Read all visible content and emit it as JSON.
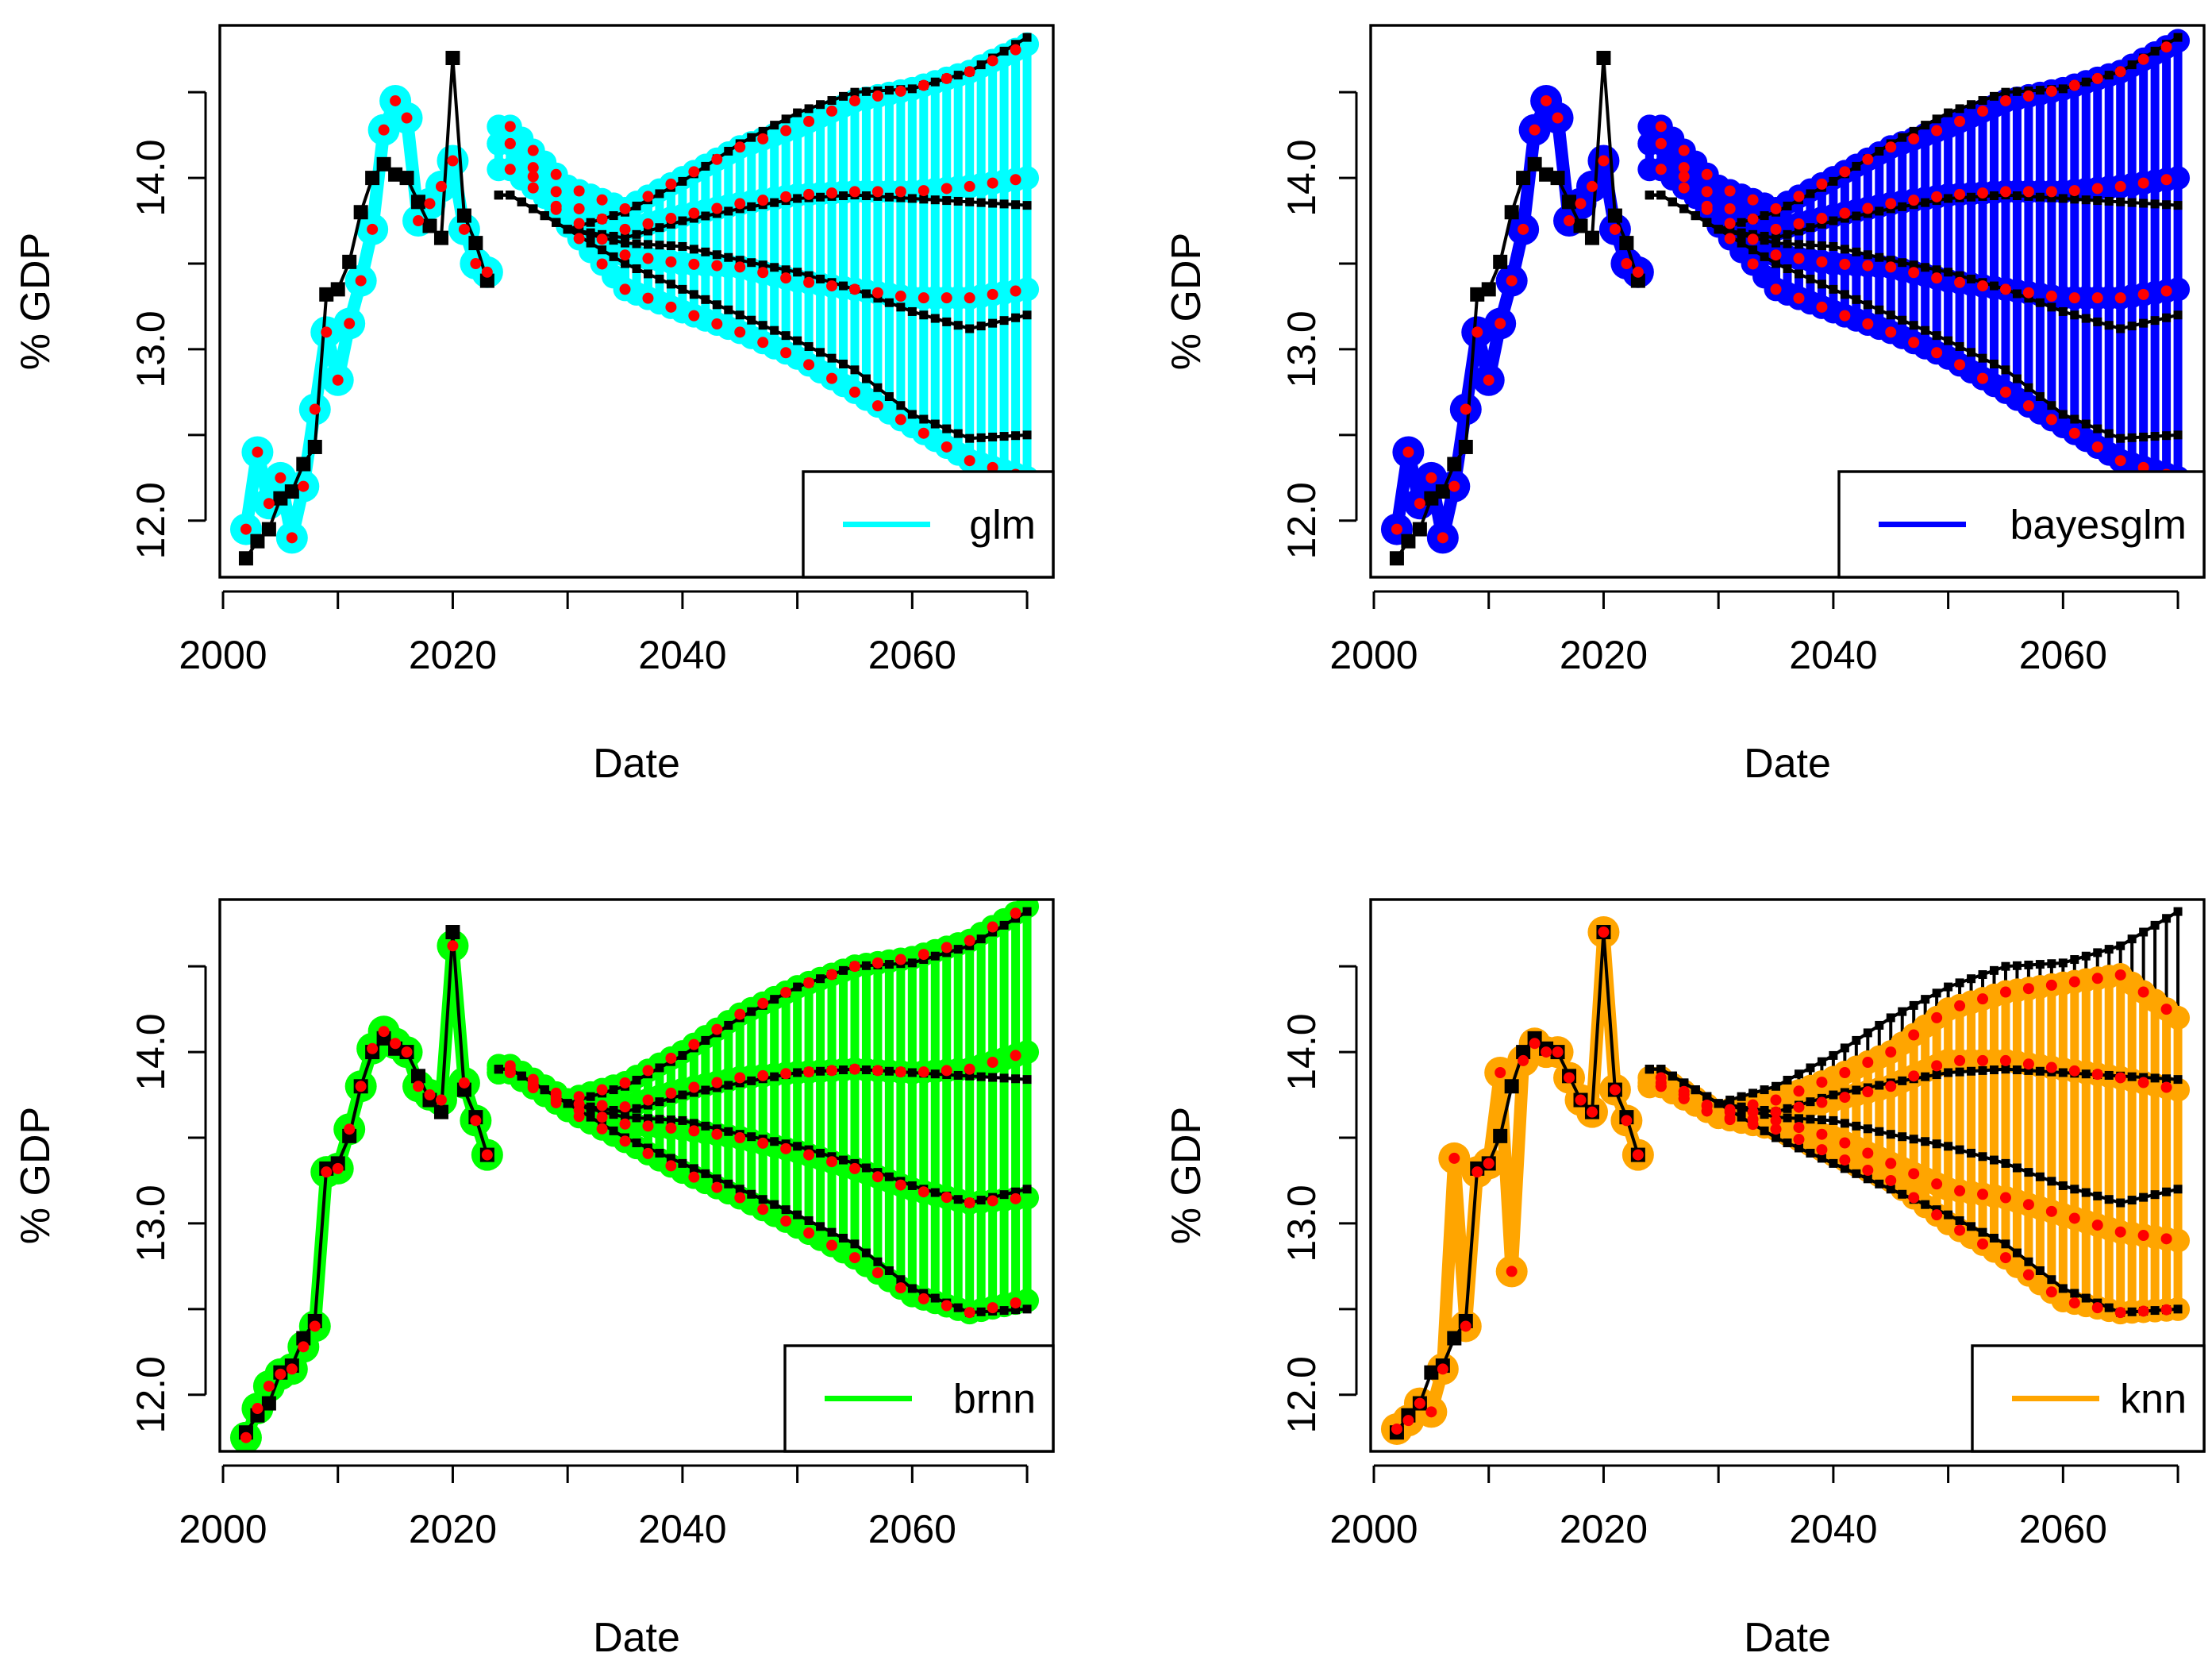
{
  "chart_data": [
    {
      "type": "line",
      "panel": "top-left",
      "model": "glm",
      "color": "#00ffff",
      "xlabel": "Date",
      "ylabel": "% GDP",
      "xlim": [
        2000,
        2072
      ],
      "ylim": [
        11.67,
        14.89
      ],
      "xticks": [
        2000,
        2020,
        2040,
        2060
      ],
      "yticks": [
        12.0,
        13.0,
        14.0
      ],
      "yticks_minor": [
        12.5,
        13.5,
        14.5
      ],
      "legend": {
        "label": "glm",
        "position": "bottom-right"
      },
      "observed": {
        "x": [
          2002,
          2003,
          2004,
          2005,
          2006,
          2007,
          2008,
          2009,
          2010,
          2011,
          2012,
          2013,
          2014,
          2015,
          2016,
          2017,
          2018,
          2019,
          2020,
          2021,
          2022,
          2023
        ],
        "y": [
          11.78,
          11.88,
          11.95,
          12.13,
          12.17,
          12.33,
          12.43,
          13.32,
          13.35,
          13.51,
          13.8,
          14.0,
          14.08,
          14.02,
          14.0,
          13.86,
          13.72,
          13.65,
          14.7,
          13.78,
          13.62,
          13.4
        ]
      },
      "fitted_history": {
        "x": [
          2002,
          2003,
          2004,
          2005,
          2006,
          2007,
          2008,
          2009,
          2010,
          2011,
          2012,
          2013,
          2014,
          2015,
          2016,
          2017,
          2018,
          2019,
          2020,
          2021,
          2022,
          2023
        ],
        "y": [
          11.95,
          12.4,
          12.1,
          12.25,
          11.9,
          12.2,
          12.65,
          13.1,
          12.82,
          13.15,
          13.4,
          13.7,
          14.28,
          14.45,
          14.35,
          13.75,
          13.85,
          13.95,
          14.1,
          13.7,
          13.5,
          13.45
        ]
      },
      "projection_x": [
        2025,
        2030,
        2035,
        2040,
        2045,
        2050,
        2055,
        2060,
        2065,
        2070
      ],
      "reference_paths": [
        {
          "name": "upper",
          "y": [
            13.9,
            13.7,
            13.8,
            13.98,
            14.2,
            14.38,
            14.5,
            14.52,
            14.62,
            14.82
          ]
        },
        {
          "name": "upper-middle",
          "y": [
            13.9,
            13.7,
            13.65,
            13.75,
            13.82,
            13.88,
            13.9,
            13.88,
            13.86,
            13.84
          ]
        },
        {
          "name": "lower-middle",
          "y": [
            13.9,
            13.7,
            13.62,
            13.6,
            13.52,
            13.45,
            13.35,
            13.22,
            13.12,
            13.2
          ]
        },
        {
          "name": "lower",
          "y": [
            13.9,
            13.7,
            13.5,
            13.35,
            13.2,
            13.05,
            12.88,
            12.62,
            12.48,
            12.5
          ]
        }
      ],
      "model_paths": [
        {
          "name": "upper",
          "y": [
            14.3,
            13.95,
            13.82,
            14.0,
            14.18,
            14.3,
            14.45,
            14.52,
            14.62,
            14.78
          ]
        },
        {
          "name": "upper-middle",
          "y": [
            14.2,
            13.85,
            13.7,
            13.78,
            13.85,
            13.9,
            13.92,
            13.92,
            13.95,
            14.0
          ]
        },
        {
          "name": "lower-middle",
          "y": [
            14.05,
            13.78,
            13.55,
            13.5,
            13.48,
            13.4,
            13.35,
            13.3,
            13.3,
            13.35
          ]
        },
        {
          "name": "lower",
          "y": [
            14.2,
            13.72,
            13.35,
            13.22,
            13.1,
            12.95,
            12.75,
            12.55,
            12.35,
            12.25
          ]
        }
      ]
    },
    {
      "type": "line",
      "panel": "top-right",
      "model": "bayesglm",
      "color": "#0000ff",
      "xlabel": "Date",
      "ylabel": "% GDP",
      "xlim": [
        2000,
        2072
      ],
      "ylim": [
        11.67,
        14.89
      ],
      "xticks": [
        2000,
        2020,
        2040,
        2060
      ],
      "yticks": [
        12.0,
        13.0,
        14.0
      ],
      "yticks_minor": [
        12.5,
        13.5,
        14.5
      ],
      "legend": {
        "label": "bayesglm",
        "position": "bottom-right"
      },
      "observed": {
        "x": [
          2002,
          2003,
          2004,
          2005,
          2006,
          2007,
          2008,
          2009,
          2010,
          2011,
          2012,
          2013,
          2014,
          2015,
          2016,
          2017,
          2018,
          2019,
          2020,
          2021,
          2022,
          2023
        ],
        "y": [
          11.78,
          11.88,
          11.95,
          12.13,
          12.17,
          12.33,
          12.43,
          13.32,
          13.35,
          13.51,
          13.8,
          14.0,
          14.08,
          14.02,
          14.0,
          13.86,
          13.72,
          13.65,
          14.7,
          13.78,
          13.62,
          13.4
        ]
      },
      "fitted_history": {
        "x": [
          2002,
          2003,
          2004,
          2005,
          2006,
          2007,
          2008,
          2009,
          2010,
          2011,
          2012,
          2013,
          2014,
          2015,
          2016,
          2017,
          2018,
          2019,
          2020,
          2021,
          2022,
          2023
        ],
        "y": [
          11.95,
          12.4,
          12.1,
          12.25,
          11.9,
          12.2,
          12.65,
          13.1,
          12.82,
          13.15,
          13.4,
          13.7,
          14.28,
          14.45,
          14.35,
          13.75,
          13.85,
          13.95,
          14.1,
          13.7,
          13.5,
          13.45
        ]
      },
      "projection_x": [
        2025,
        2030,
        2035,
        2040,
        2045,
        2050,
        2055,
        2060,
        2065,
        2070
      ],
      "reference_paths": [
        {
          "name": "upper",
          "y": [
            13.9,
            13.7,
            13.8,
            13.98,
            14.2,
            14.38,
            14.5,
            14.52,
            14.62,
            14.82
          ]
        },
        {
          "name": "upper-middle",
          "y": [
            13.9,
            13.7,
            13.65,
            13.75,
            13.82,
            13.88,
            13.9,
            13.88,
            13.86,
            13.84
          ]
        },
        {
          "name": "lower-middle",
          "y": [
            13.9,
            13.7,
            13.62,
            13.6,
            13.52,
            13.45,
            13.35,
            13.22,
            13.12,
            13.2
          ]
        },
        {
          "name": "lower",
          "y": [
            13.9,
            13.7,
            13.5,
            13.35,
            13.2,
            13.05,
            12.88,
            12.62,
            12.48,
            12.5
          ]
        }
      ],
      "model_paths": [
        {
          "name": "upper",
          "y": [
            14.3,
            13.95,
            13.82,
            14.0,
            14.18,
            14.3,
            14.45,
            14.52,
            14.62,
            14.8
          ]
        },
        {
          "name": "upper-middle",
          "y": [
            14.2,
            13.85,
            13.7,
            13.78,
            13.85,
            13.9,
            13.92,
            13.92,
            13.95,
            14.0
          ]
        },
        {
          "name": "lower-middle",
          "y": [
            14.05,
            13.78,
            13.55,
            13.5,
            13.48,
            13.4,
            13.35,
            13.3,
            13.3,
            13.35
          ]
        },
        {
          "name": "lower",
          "y": [
            14.2,
            13.72,
            13.35,
            13.22,
            13.1,
            12.95,
            12.75,
            12.55,
            12.35,
            12.25
          ]
        }
      ]
    },
    {
      "type": "line",
      "panel": "bottom-left",
      "model": "brnn",
      "color": "#00ff00",
      "xlabel": "Date",
      "ylabel": "% GDP",
      "xlim": [
        2000,
        2072
      ],
      "ylim": [
        11.67,
        14.89
      ],
      "xticks": [
        2000,
        2020,
        2040,
        2060
      ],
      "yticks": [
        12.0,
        13.0,
        14.0
      ],
      "yticks_minor": [
        12.5,
        13.5,
        14.5
      ],
      "legend": {
        "label": "brnn",
        "position": "bottom-right"
      },
      "observed": {
        "x": [
          2002,
          2003,
          2004,
          2005,
          2006,
          2007,
          2008,
          2009,
          2010,
          2011,
          2012,
          2013,
          2014,
          2015,
          2016,
          2017,
          2018,
          2019,
          2020,
          2021,
          2022,
          2023
        ],
        "y": [
          11.78,
          11.88,
          11.95,
          12.13,
          12.17,
          12.33,
          12.43,
          13.32,
          13.35,
          13.51,
          13.8,
          14.0,
          14.08,
          14.02,
          14.0,
          13.86,
          13.72,
          13.65,
          14.7,
          13.78,
          13.62,
          13.4
        ]
      },
      "fitted_history": {
        "x": [
          2002,
          2003,
          2004,
          2005,
          2006,
          2007,
          2008,
          2009,
          2010,
          2011,
          2012,
          2013,
          2014,
          2015,
          2016,
          2017,
          2018,
          2019,
          2020,
          2021,
          2022,
          2023
        ],
        "y": [
          11.75,
          11.92,
          12.05,
          12.12,
          12.15,
          12.28,
          12.4,
          13.3,
          13.32,
          13.55,
          13.8,
          14.02,
          14.12,
          14.05,
          14.0,
          13.8,
          13.75,
          13.72,
          14.62,
          13.82,
          13.6,
          13.4
        ]
      },
      "projection_x": [
        2025,
        2030,
        2035,
        2040,
        2045,
        2050,
        2055,
        2060,
        2065,
        2070
      ],
      "reference_paths": [
        {
          "name": "upper",
          "y": [
            13.9,
            13.7,
            13.8,
            13.98,
            14.2,
            14.38,
            14.5,
            14.52,
            14.62,
            14.82
          ]
        },
        {
          "name": "upper-middle",
          "y": [
            13.9,
            13.7,
            13.65,
            13.75,
            13.82,
            13.88,
            13.9,
            13.88,
            13.86,
            13.84
          ]
        },
        {
          "name": "lower-middle",
          "y": [
            13.9,
            13.7,
            13.62,
            13.6,
            13.52,
            13.45,
            13.35,
            13.22,
            13.12,
            13.2
          ]
        },
        {
          "name": "lower",
          "y": [
            13.9,
            13.7,
            13.5,
            13.35,
            13.2,
            13.05,
            12.88,
            12.62,
            12.48,
            12.5
          ]
        }
      ],
      "model_paths": [
        {
          "name": "upper",
          "y": [
            13.92,
            13.72,
            13.82,
            14.0,
            14.22,
            14.38,
            14.5,
            14.55,
            14.65,
            14.85
          ]
        },
        {
          "name": "upper-middle",
          "y": [
            13.9,
            13.7,
            13.68,
            13.78,
            13.85,
            13.88,
            13.9,
            13.88,
            13.9,
            14.0
          ]
        },
        {
          "name": "lower-middle",
          "y": [
            13.88,
            13.68,
            13.58,
            13.55,
            13.5,
            13.42,
            13.32,
            13.2,
            13.12,
            13.15
          ]
        },
        {
          "name": "lower",
          "y": [
            13.88,
            13.66,
            13.48,
            13.3,
            13.15,
            12.98,
            12.8,
            12.58,
            12.48,
            12.55
          ]
        }
      ]
    },
    {
      "type": "line",
      "panel": "bottom-right",
      "model": "knn",
      "color": "#ffa500",
      "xlabel": "Date",
      "ylabel": "% GDP",
      "xlim": [
        2000,
        2072
      ],
      "ylim": [
        11.67,
        14.89
      ],
      "xticks": [
        2000,
        2020,
        2040,
        2060
      ],
      "yticks": [
        12.0,
        13.0,
        14.0
      ],
      "yticks_minor": [
        12.5,
        13.5,
        14.5
      ],
      "legend": {
        "label": "knn",
        "position": "bottom-right"
      },
      "observed": {
        "x": [
          2002,
          2003,
          2004,
          2005,
          2006,
          2007,
          2008,
          2009,
          2010,
          2011,
          2012,
          2013,
          2014,
          2015,
          2016,
          2017,
          2018,
          2019,
          2020,
          2021,
          2022,
          2023
        ],
        "y": [
          11.78,
          11.88,
          11.95,
          12.13,
          12.17,
          12.33,
          12.43,
          13.32,
          13.35,
          13.51,
          13.8,
          14.0,
          14.08,
          14.02,
          14.0,
          13.86,
          13.72,
          13.65,
          14.7,
          13.78,
          13.62,
          13.4
        ]
      },
      "fitted_history": {
        "x": [
          2002,
          2003,
          2004,
          2005,
          2006,
          2007,
          2008,
          2009,
          2010,
          2011,
          2012,
          2013,
          2014,
          2015,
          2016,
          2017,
          2018,
          2019,
          2020,
          2021,
          2022,
          2023
        ],
        "y": [
          11.8,
          11.85,
          11.95,
          11.9,
          12.15,
          13.38,
          12.4,
          13.3,
          13.35,
          13.88,
          12.72,
          13.95,
          14.05,
          14.0,
          14.0,
          13.85,
          13.72,
          13.65,
          14.7,
          13.78,
          13.6,
          13.4
        ]
      },
      "projection_x": [
        2025,
        2030,
        2035,
        2040,
        2045,
        2050,
        2055,
        2060,
        2065,
        2070
      ],
      "reference_paths": [
        {
          "name": "upper",
          "y": [
            13.9,
            13.7,
            13.8,
            13.98,
            14.2,
            14.38,
            14.5,
            14.52,
            14.62,
            14.82
          ]
        },
        {
          "name": "upper-middle",
          "y": [
            13.9,
            13.7,
            13.65,
            13.75,
            13.82,
            13.88,
            13.9,
            13.88,
            13.86,
            13.84
          ]
        },
        {
          "name": "lower-middle",
          "y": [
            13.9,
            13.7,
            13.62,
            13.6,
            13.52,
            13.45,
            13.35,
            13.22,
            13.12,
            13.2
          ]
        },
        {
          "name": "lower",
          "y": [
            13.9,
            13.7,
            13.5,
            13.35,
            13.2,
            13.05,
            12.88,
            12.62,
            12.48,
            12.5
          ]
        }
      ],
      "model_paths": [
        {
          "name": "upper",
          "y": [
            13.85,
            13.65,
            13.72,
            13.85,
            14.0,
            14.25,
            14.35,
            14.4,
            14.45,
            14.2
          ]
        },
        {
          "name": "upper-middle",
          "y": [
            13.82,
            13.65,
            13.65,
            13.72,
            13.8,
            13.95,
            13.95,
            13.9,
            13.85,
            13.78
          ]
        },
        {
          "name": "lower-middle",
          "y": [
            13.8,
            13.62,
            13.6,
            13.5,
            13.35,
            13.2,
            13.15,
            13.05,
            12.95,
            12.9
          ]
        },
        {
          "name": "lower",
          "y": [
            13.8,
            13.62,
            13.55,
            13.4,
            13.25,
            13.0,
            12.8,
            12.55,
            12.48,
            12.5
          ]
        }
      ]
    }
  ]
}
